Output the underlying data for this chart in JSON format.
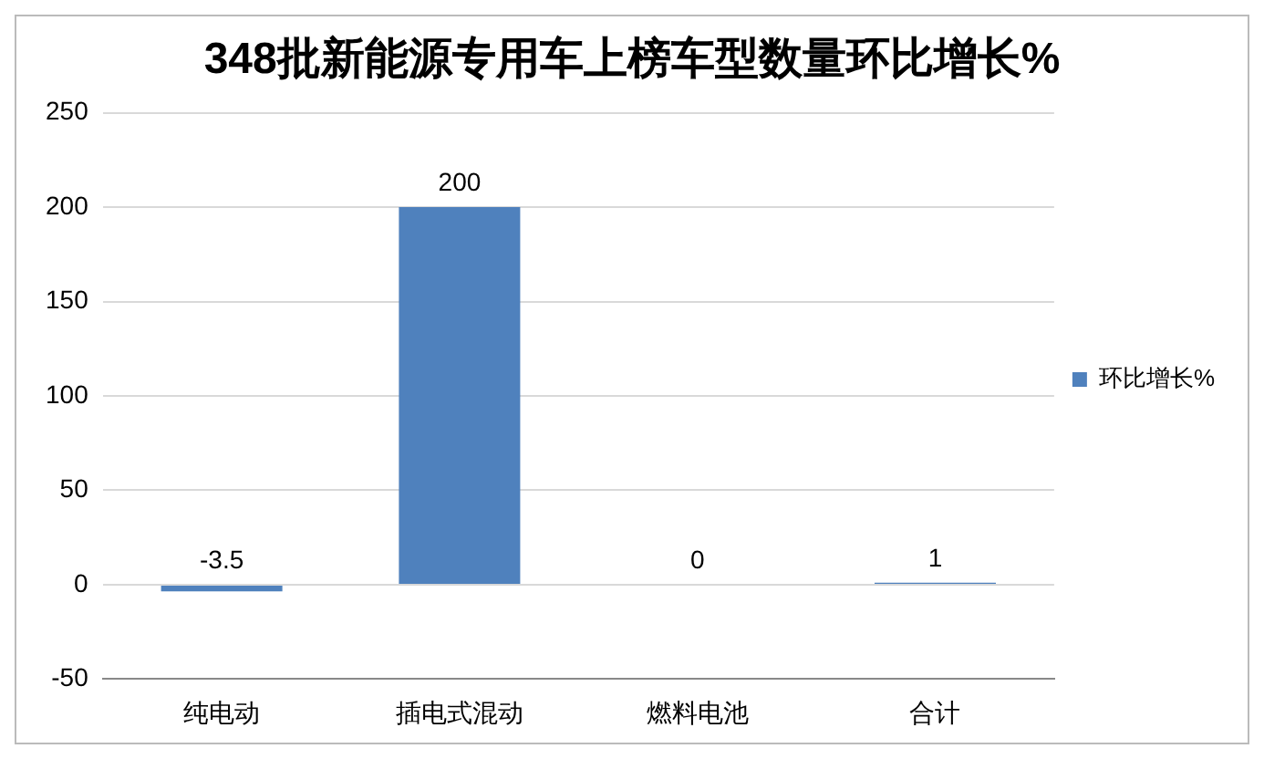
{
  "chart_data": {
    "type": "bar",
    "title": "348批新能源专用车上榜车型数量环比增长%",
    "categories": [
      "纯电动",
      "插电式混动",
      "燃料电池",
      "合计"
    ],
    "series": [
      {
        "name": "环比增长%",
        "color": "#4f81bd",
        "values": [
          -3.5,
          200,
          0,
          1
        ]
      }
    ],
    "ylim": [
      -50,
      250
    ],
    "yticks": [
      -50,
      0,
      50,
      100,
      150,
      200,
      250
    ],
    "grid": "y",
    "legend": "right",
    "data_labels": true
  }
}
